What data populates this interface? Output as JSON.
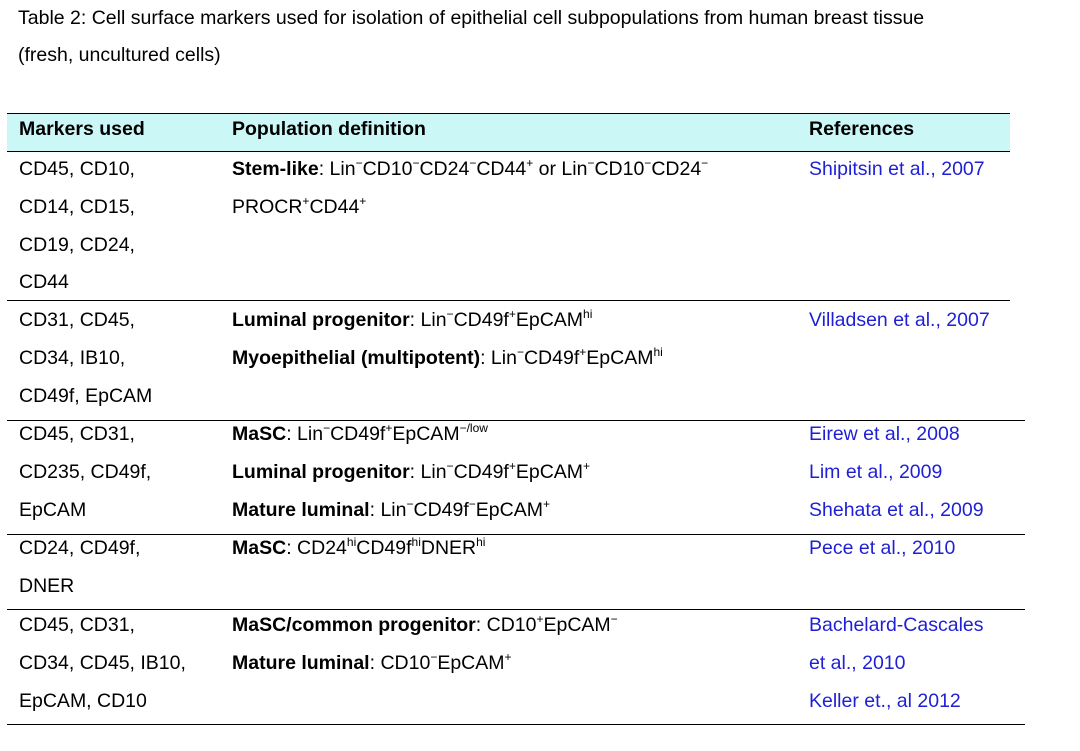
{
  "caption": {
    "line1": "Table 2: Cell surface markers used for isolation of epithelial cell subpopulations from human breast tissue",
    "line2": "(fresh, uncultured cells)"
  },
  "columns": {
    "markers": "Markers used",
    "population": "Population definition",
    "references": "References"
  },
  "rows": [
    {
      "markers": [
        "CD45, CD10,",
        "CD14, CD15,",
        "CD19, CD24,",
        "CD44"
      ],
      "population": [
        {
          "label": "Stem-like",
          "parts": [
            [
              "Lin",
              "−"
            ],
            [
              "CD10",
              "−"
            ],
            [
              "CD24",
              "−"
            ],
            [
              "CD44",
              "+"
            ],
            [
              " or Lin",
              "−"
            ],
            [
              "CD10",
              "−"
            ],
            [
              "CD24",
              "−"
            ]
          ]
        },
        {
          "label": "",
          "parts": [
            [
              "PROCR",
              "+"
            ],
            [
              "CD44",
              "+"
            ]
          ]
        }
      ],
      "references": [
        "Shipitsin et al., 2007"
      ]
    },
    {
      "markers": [
        "CD31, CD45,",
        "CD34, IB10,",
        "CD49f, EpCAM"
      ],
      "population": [
        {
          "label": "Luminal progenitor",
          "parts": [
            [
              "Lin",
              "−"
            ],
            [
              "CD49f",
              "+"
            ],
            [
              "EpCAM",
              "hi"
            ]
          ]
        },
        {
          "label": "Myoepithelial (multipotent)",
          "parts": [
            [
              "Lin",
              "−"
            ],
            [
              "CD49f",
              "+"
            ],
            [
              "EpCAM",
              "hi"
            ]
          ]
        }
      ],
      "references": [
        "Villadsen et al., 2007"
      ]
    },
    {
      "markers": [
        "CD45, CD31,",
        "CD235, CD49f,",
        "EpCAM"
      ],
      "population": [
        {
          "label": "MaSC",
          "parts": [
            [
              "Lin",
              "−"
            ],
            [
              "CD49f",
              "+"
            ],
            [
              "EpCAM",
              "−/low"
            ]
          ]
        },
        {
          "label": "Luminal progenitor",
          "parts": [
            [
              "Lin",
              "−"
            ],
            [
              "CD49f",
              "+"
            ],
            [
              "EpCAM",
              "+"
            ]
          ]
        },
        {
          "label": "Mature luminal",
          "parts": [
            [
              "Lin",
              "−"
            ],
            [
              "CD49f",
              "−"
            ],
            [
              "EpCAM",
              "+"
            ]
          ]
        }
      ],
      "references": [
        "Eirew et al., 2008",
        "Lim et al., 2009",
        "Shehata et al., 2009"
      ]
    },
    {
      "markers": [
        "CD24, CD49f,",
        "DNER"
      ],
      "population": [
        {
          "label": "MaSC",
          "parts": [
            [
              "CD24",
              "hi"
            ],
            [
              "CD49f",
              "hi"
            ],
            [
              "DNER",
              "hi"
            ]
          ]
        }
      ],
      "references": [
        "Pece et al., 2010"
      ]
    },
    {
      "markers": [
        "CD45, CD31,",
        "CD34, CD45, IB10,",
        "EpCAM, CD10"
      ],
      "population": [
        {
          "label": "MaSC/common progenitor",
          "parts": [
            [
              "CD10",
              "+"
            ],
            [
              "EpCAM",
              "−"
            ]
          ]
        },
        {
          "label": "Mature luminal",
          "parts": [
            [
              "CD10",
              "−"
            ],
            [
              "EpCAM",
              "+"
            ]
          ]
        }
      ],
      "references": [
        "Bachelard-Cascales",
        "et al., 2010",
        "Keller et., al 2012"
      ]
    }
  ]
}
